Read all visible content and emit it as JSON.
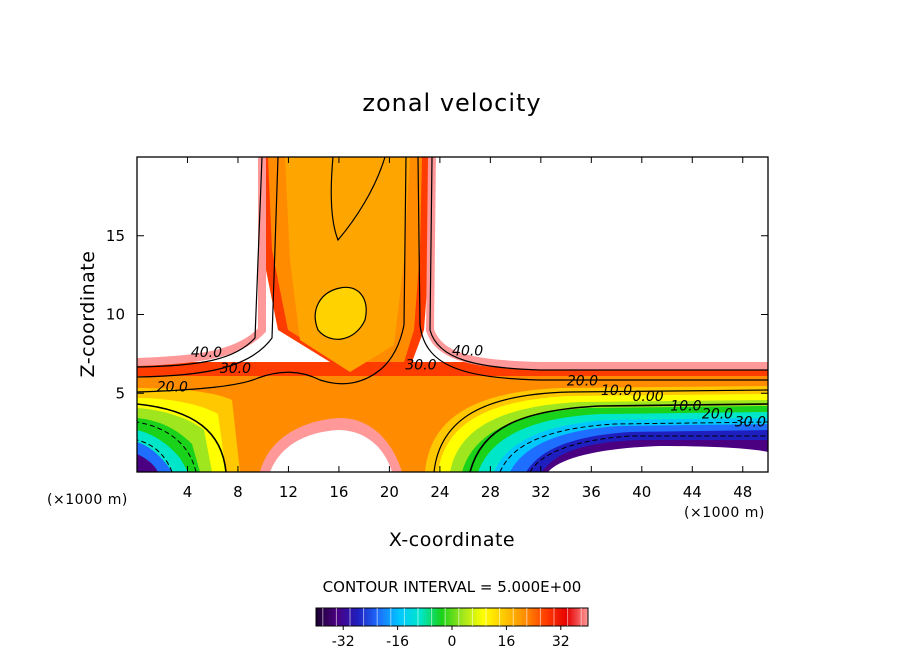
{
  "chart_data": {
    "type": "contour",
    "title": "zonal velocity",
    "xlabel": "X-coordinate",
    "ylabel": "Z-coordinate",
    "x_unit_label": "(×1000 m)",
    "xlim": [
      0,
      50
    ],
    "ylim": [
      0,
      20
    ],
    "x_ticks": [
      4,
      8,
      12,
      16,
      20,
      24,
      28,
      32,
      36,
      40,
      44,
      48
    ],
    "y_ticks": [
      5,
      10,
      15
    ],
    "contour_interval_text": "CONTOUR INTERVAL = 5.000E+00",
    "contour_labels": [
      {
        "text": "40.0",
        "x": 5.5,
        "z": 7.3
      },
      {
        "text": "30.0",
        "x": 7.8,
        "z": 6.3
      },
      {
        "text": "20.0",
        "x": 2.8,
        "z": 5.1
      },
      {
        "text": "30.0",
        "x": 22.5,
        "z": 6.5
      },
      {
        "text": "40.0",
        "x": 26.2,
        "z": 7.4
      },
      {
        "text": "20.0",
        "x": 35.3,
        "z": 5.5
      },
      {
        "text": "10.0",
        "x": 38.0,
        "z": 4.9
      },
      {
        "text": "0.00",
        "x": 40.5,
        "z": 4.5
      },
      {
        "text": "10.0",
        "x": 43.5,
        "z": 3.9
      },
      {
        "text": "20.0",
        "x": 46.0,
        "z": 3.4
      },
      {
        "text": "30.0",
        "x": 48.6,
        "z": 2.9
      }
    ],
    "colorbar": {
      "min": -40,
      "max": 40,
      "ticks": [
        -32,
        -16,
        0,
        16,
        32
      ],
      "colors": [
        "#1a0030",
        "#4b0082",
        "#1f1fbf",
        "#1e6fff",
        "#00c8ff",
        "#00e6c8",
        "#19d219",
        "#a0e61e",
        "#ffff00",
        "#ffc800",
        "#ff8c00",
        "#ff3c00",
        "#e60000",
        "#ff9999"
      ]
    }
  }
}
